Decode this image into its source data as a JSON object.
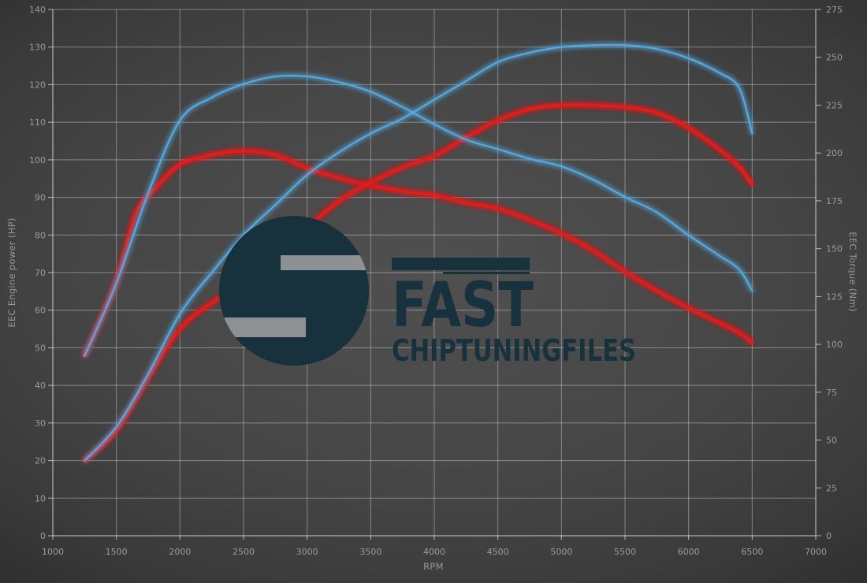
{
  "watermark": {
    "line1": "FAST",
    "line2": "CHIPTUNINGFILES",
    "logo_color": "#18323d",
    "notch_color": "#8d9194"
  },
  "chart_data": {
    "type": "line",
    "title": "",
    "xlabel": "RPM",
    "ylabel_left": "EEC Engine power (HP)",
    "ylabel_right": "EEC Torque (Nm)",
    "x_axis": {
      "min": 1000,
      "max": 7000,
      "tick_step": 500
    },
    "y_left": {
      "min": 0,
      "max": 140,
      "tick_step": 10
    },
    "y_right": {
      "min": 0,
      "max": 275,
      "tick_step": 25
    },
    "grid": true,
    "legend": "none",
    "plot_colors": {
      "grid": "rgba(220,220,220,0.45)",
      "axis": "rgba(235,235,235,0.7)",
      "blue": "#55a7dd",
      "red": "#e01f1f"
    },
    "series": [
      {
        "name": "red-torque",
        "axis": "right",
        "unit": "Nm",
        "color": "#e01f1f",
        "width": 4,
        "points": [
          [
            1250,
            94
          ],
          [
            1500,
            133
          ],
          [
            1650,
            168
          ],
          [
            1800,
            181
          ],
          [
            2000,
            194
          ],
          [
            2250,
            199
          ],
          [
            2500,
            201
          ],
          [
            2750,
            199
          ],
          [
            3000,
            192
          ],
          [
            3250,
            187
          ],
          [
            3500,
            183
          ],
          [
            3750,
            180
          ],
          [
            4000,
            178
          ],
          [
            4250,
            174
          ],
          [
            4500,
            171
          ],
          [
            4750,
            165
          ],
          [
            5000,
            158
          ],
          [
            5250,
            149
          ],
          [
            5500,
            138
          ],
          [
            5750,
            128
          ],
          [
            6000,
            119
          ],
          [
            6250,
            111
          ],
          [
            6400,
            106
          ],
          [
            6500,
            101
          ]
        ]
      },
      {
        "name": "red-power",
        "axis": "left",
        "unit": "HP",
        "color": "#e01f1f",
        "width": 4,
        "points": [
          [
            1250,
            20
          ],
          [
            1500,
            28
          ],
          [
            1750,
            42
          ],
          [
            2000,
            55
          ],
          [
            2250,
            62
          ],
          [
            2500,
            67
          ],
          [
            2750,
            74
          ],
          [
            3000,
            82
          ],
          [
            3250,
            89
          ],
          [
            3500,
            94
          ],
          [
            3750,
            98
          ],
          [
            4000,
            101
          ],
          [
            4250,
            106
          ],
          [
            4500,
            110.5
          ],
          [
            4750,
            113.5
          ],
          [
            5000,
            114.5
          ],
          [
            5250,
            114.5
          ],
          [
            5500,
            114
          ],
          [
            5750,
            112.5
          ],
          [
            6000,
            108.5
          ],
          [
            6250,
            102.5
          ],
          [
            6400,
            98
          ],
          [
            6500,
            93.5
          ]
        ]
      },
      {
        "name": "blue-torque",
        "axis": "right",
        "unit": "Nm",
        "color": "#55a7dd",
        "width": 2.3,
        "points": [
          [
            1250,
            94
          ],
          [
            1500,
            132
          ],
          [
            1750,
            179
          ],
          [
            2000,
            217
          ],
          [
            2250,
            229
          ],
          [
            2500,
            236
          ],
          [
            2750,
            240
          ],
          [
            3000,
            240
          ],
          [
            3250,
            237
          ],
          [
            3500,
            232
          ],
          [
            3750,
            224
          ],
          [
            4000,
            215
          ],
          [
            4250,
            207
          ],
          [
            4500,
            202
          ],
          [
            4750,
            197
          ],
          [
            5000,
            193
          ],
          [
            5250,
            186
          ],
          [
            5500,
            177
          ],
          [
            5750,
            169
          ],
          [
            6000,
            157
          ],
          [
            6250,
            146
          ],
          [
            6400,
            139
          ],
          [
            6500,
            128
          ]
        ]
      },
      {
        "name": "blue-power",
        "axis": "left",
        "unit": "HP",
        "color": "#55a7dd",
        "width": 2.3,
        "points": [
          [
            1250,
            20
          ],
          [
            1500,
            29
          ],
          [
            1750,
            43
          ],
          [
            2000,
            59
          ],
          [
            2250,
            70
          ],
          [
            2500,
            80
          ],
          [
            2750,
            88
          ],
          [
            3000,
            96
          ],
          [
            3250,
            102
          ],
          [
            3500,
            107
          ],
          [
            3750,
            111
          ],
          [
            4000,
            116
          ],
          [
            4250,
            121
          ],
          [
            4500,
            126
          ],
          [
            4750,
            128.5
          ],
          [
            5000,
            130
          ],
          [
            5250,
            130.5
          ],
          [
            5500,
            130.5
          ],
          [
            5750,
            129.5
          ],
          [
            6000,
            127
          ],
          [
            6250,
            123
          ],
          [
            6400,
            119
          ],
          [
            6500,
            107
          ]
        ]
      }
    ]
  }
}
